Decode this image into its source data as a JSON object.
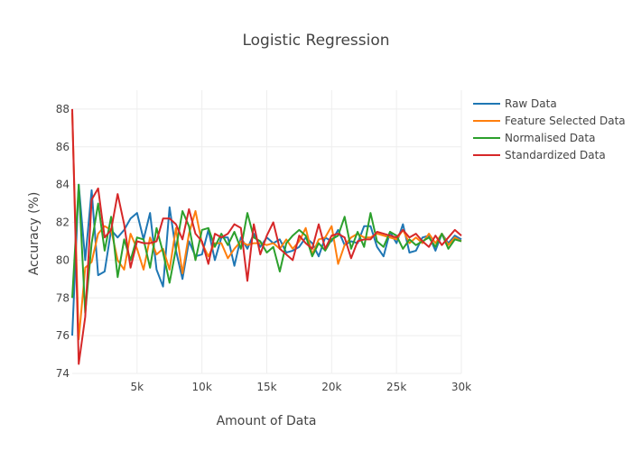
{
  "chart_data": {
    "type": "line",
    "title": "Logistic Regression",
    "xlabel": "Amount of Data",
    "ylabel": "Accuracy (%)",
    "xlim": [
      0,
      30000
    ],
    "ylim": [
      74,
      89
    ],
    "x_ticks": [
      {
        "value": 5000,
        "label": "5k"
      },
      {
        "value": 10000,
        "label": "10k"
      },
      {
        "value": 15000,
        "label": "15k"
      },
      {
        "value": 20000,
        "label": "20k"
      },
      {
        "value": 25000,
        "label": "25k"
      },
      {
        "value": 30000,
        "label": "30k"
      }
    ],
    "y_ticks": [
      {
        "value": 74,
        "label": "74"
      },
      {
        "value": 76,
        "label": "76"
      },
      {
        "value": 78,
        "label": "78"
      },
      {
        "value": 80,
        "label": "80"
      },
      {
        "value": 82,
        "label": "82"
      },
      {
        "value": 84,
        "label": "84"
      },
      {
        "value": 86,
        "label": "86"
      },
      {
        "value": 88,
        "label": "88"
      }
    ],
    "grid": true,
    "legend_position": "top-right",
    "x": [
      0,
      500,
      1000,
      1500,
      2000,
      2500,
      3000,
      3500,
      4000,
      4500,
      5000,
      5500,
      6000,
      6500,
      7000,
      7500,
      8000,
      8500,
      9000,
      9500,
      10000,
      10500,
      11000,
      11500,
      12000,
      12500,
      13000,
      13500,
      14000,
      14500,
      15000,
      15500,
      16000,
      16500,
      17000,
      17500,
      18000,
      18500,
      19000,
      19500,
      20000,
      20500,
      21000,
      21500,
      22000,
      22500,
      23000,
      23500,
      24000,
      24500,
      25000,
      25500,
      26000,
      26500,
      27000,
      27500,
      28000,
      28500,
      29000,
      29500,
      30000
    ],
    "series": [
      {
        "name": "Raw Data",
        "color": "#1f77b4",
        "values": [
          76.0,
          84.0,
          80.0,
          83.7,
          79.2,
          79.4,
          81.6,
          81.2,
          81.6,
          82.2,
          82.5,
          81.1,
          82.5,
          79.5,
          78.6,
          82.8,
          80.5,
          79.0,
          81.0,
          80.2,
          80.3,
          81.6,
          80.0,
          81.2,
          81.2,
          79.7,
          81.2,
          80.6,
          81.4,
          80.7,
          81.2,
          80.9,
          81.1,
          80.4,
          80.5,
          80.7,
          81.2,
          80.9,
          80.2,
          81.2,
          81.0,
          81.6,
          80.8,
          81.0,
          80.9,
          81.8,
          81.8,
          80.7,
          80.2,
          81.5,
          80.9,
          81.9,
          80.4,
          80.5,
          81.2,
          81.3,
          80.5,
          81.4,
          80.9,
          81.3,
          81.1
        ]
      },
      {
        "name": "Feature Selected Data",
        "color": "#ff7f0e",
        "values": [
          87.8,
          75.8,
          79.6,
          79.9,
          81.4,
          81.8,
          81.6,
          80.0,
          79.5,
          81.4,
          80.6,
          79.5,
          81.2,
          80.3,
          80.6,
          79.5,
          81.7,
          79.3,
          81.4,
          82.6,
          80.9,
          80.2,
          80.9,
          80.9,
          80.1,
          80.6,
          81.0,
          80.8,
          80.9,
          80.9,
          80.8,
          80.9,
          80.6,
          81.1,
          80.6,
          81.0,
          81.7,
          80.3,
          81.1,
          81.2,
          81.8,
          79.8,
          80.8,
          81.2,
          81.4,
          81.2,
          81.2,
          81.4,
          81.3,
          81.2,
          81.1,
          81.6,
          80.9,
          81.2,
          80.9,
          81.4,
          80.9,
          81.4,
          80.8,
          81.2,
          81.0
        ]
      },
      {
        "name": "Normalised Data",
        "color": "#2ca02c",
        "values": [
          78.0,
          84.0,
          77.2,
          80.9,
          83.0,
          80.5,
          82.3,
          79.1,
          81.1,
          80.0,
          81.2,
          81.1,
          79.6,
          81.7,
          80.4,
          78.8,
          80.6,
          82.6,
          81.8,
          80.0,
          81.6,
          81.7,
          80.7,
          81.4,
          80.8,
          81.5,
          80.6,
          82.5,
          81.2,
          81.0,
          80.4,
          80.7,
          79.4,
          80.9,
          81.3,
          81.6,
          81.3,
          80.2,
          80.9,
          80.5,
          81.1,
          81.3,
          82.3,
          80.6,
          81.5,
          80.7,
          82.5,
          81.0,
          80.7,
          81.5,
          81.3,
          80.6,
          81.1,
          80.8,
          81.0,
          81.2,
          80.7,
          81.4,
          80.6,
          81.1,
          81.0
        ]
      },
      {
        "name": "Standardized Data",
        "color": "#d62728",
        "values": [
          88.0,
          74.5,
          77.0,
          83.2,
          83.8,
          81.2,
          81.6,
          83.5,
          81.9,
          79.6,
          81.0,
          80.9,
          80.9,
          81.0,
          82.2,
          82.2,
          81.9,
          81.1,
          82.7,
          81.4,
          81.0,
          79.8,
          81.4,
          81.2,
          81.4,
          81.9,
          81.7,
          78.9,
          81.9,
          80.3,
          81.3,
          82.0,
          80.6,
          80.3,
          80.0,
          81.3,
          80.9,
          80.6,
          81.9,
          80.6,
          81.3,
          81.4,
          81.2,
          80.1,
          81.0,
          81.1,
          81.1,
          81.5,
          81.4,
          81.3,
          81.2,
          81.6,
          81.2,
          81.4,
          81.0,
          80.7,
          81.3,
          80.8,
          81.2,
          81.6,
          81.3
        ]
      }
    ]
  }
}
